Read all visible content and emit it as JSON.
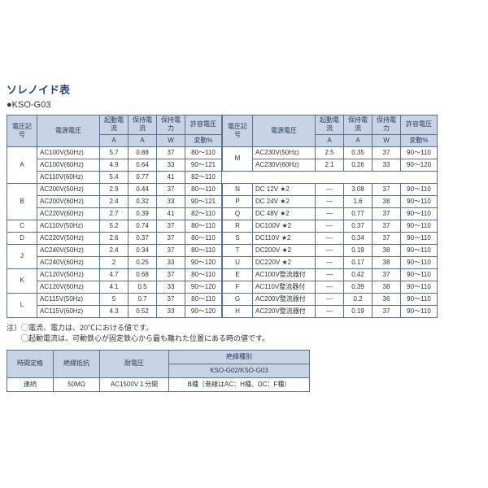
{
  "title": "ソレノイド表",
  "subtitle": "●KSO-G03",
  "headers": {
    "code": "電圧記号",
    "volt": "電源電圧",
    "start_i": "起動電流",
    "hold_i": "保持電流",
    "hold_w": "保持電力",
    "tol": "許容電圧",
    "unit_a": "A",
    "unit_w": "W",
    "unit_pct": "変動%"
  },
  "left_rows": [
    {
      "code": "A",
      "span": 4,
      "volt": "AC100V(50Hz)",
      "si": "5.7",
      "hi": "0.88",
      "hw": "37",
      "tol": "80～110"
    },
    {
      "volt": "AC100V(60Hz)",
      "si": "4.9",
      "hi": "0.64",
      "hw": "33",
      "tol": "90～121"
    },
    {
      "volt": "AC110V(60Hz)",
      "si": "5.4",
      "hi": "0.77",
      "hw": "41",
      "tol": "82～110"
    },
    {
      "volt": "AC200V(50Hz)",
      "si": "2.9",
      "hi": "0.44",
      "hw": "37",
      "tol": "80～110"
    },
    {
      "code": "B",
      "span": 3,
      "volt": "AC200V(60Hz)",
      "si": "2.4",
      "hi": "0.32",
      "hw": "33",
      "tol": "90～121"
    },
    {
      "volt": "AC220V(60Hz)",
      "si": "2.7",
      "hi": "0.39",
      "hw": "41",
      "tol": "82～110"
    },
    {
      "code": "C",
      "span": 1,
      "volt": "AC110V(50Hz)",
      "si": "5.2",
      "hi": "0.74",
      "hw": "37",
      "tol": "80～110"
    },
    {
      "code": "D",
      "span": 1,
      "volt": "AC220V(50Hz)",
      "si": "2.6",
      "hi": "0.37",
      "hw": "37",
      "tol": "80～110"
    },
    {
      "code": "J",
      "span": 2,
      "volt": "AC240V(50Hz)",
      "si": "2.4",
      "hi": "0.34",
      "hw": "37",
      "tol": "80～110"
    },
    {
      "volt": "AC240V(60Hz)",
      "si": "2",
      "hi": "0.25",
      "hw": "33",
      "tol": "90～120"
    },
    {
      "code": "K",
      "span": 2,
      "volt": "AC120V(50Hz)",
      "si": "4.7",
      "hi": "0.68",
      "hw": "37",
      "tol": "80～110"
    },
    {
      "volt": "AC120V(60Hz)",
      "si": "4.1",
      "hi": "0.5",
      "hw": "33",
      "tol": "90～120"
    },
    {
      "code": "L",
      "span": 2,
      "volt": "AC115V(50Hz)",
      "si": "5",
      "hi": "0.7",
      "hw": "37",
      "tol": "80～110"
    },
    {
      "volt": "AC115V(60Hz)",
      "si": "4.3",
      "hi": "0.52",
      "hw": "33",
      "tol": "90～120"
    }
  ],
  "right_rows": [
    {
      "code": "M",
      "span": 2,
      "volt": "AC230V(50Hz)",
      "si": "2.5",
      "hi": "0.35",
      "hw": "37",
      "tol": "90～110"
    },
    {
      "volt": "AC230V(60Hz)",
      "si": "2.1",
      "hi": "0.26",
      "hw": "33",
      "tol": "90～120"
    },
    {
      "blank": true
    },
    {
      "code": "N",
      "span": 1,
      "volt": "DC 12V ★2",
      "si": "—",
      "hi": "3.08",
      "hw": "37",
      "tol": "90～110"
    },
    {
      "code": "P",
      "span": 1,
      "volt": "DC 24V ★2",
      "si": "—",
      "hi": "1.6",
      "hw": "38",
      "tol": "90～110"
    },
    {
      "code": "Q",
      "span": 1,
      "volt": "DC 48V ★2",
      "si": "—",
      "hi": "0.77",
      "hw": "37",
      "tol": "90～110"
    },
    {
      "code": "R",
      "span": 1,
      "volt": "DC100V ★2",
      "si": "—",
      "hi": "0.37",
      "hw": "37",
      "tol": "90～110"
    },
    {
      "code": "S",
      "span": 1,
      "volt": "DC110V ★2",
      "si": "—",
      "hi": "0.34",
      "hw": "37",
      "tol": "90～110"
    },
    {
      "code": "T",
      "span": 1,
      "volt": "DC200V ★2",
      "si": "—",
      "hi": "0.19",
      "hw": "38",
      "tol": "90～110"
    },
    {
      "code": "U",
      "span": 1,
      "volt": "DC220V ★2",
      "si": "—",
      "hi": "0.17",
      "hw": "38",
      "tol": "90～110"
    },
    {
      "code": "E",
      "span": 1,
      "volt": "AC100V整流器付",
      "si": "—",
      "hi": "0.42",
      "hw": "37",
      "tol": "90～110"
    },
    {
      "code": "F",
      "span": 1,
      "volt": "AC110V整流器付",
      "si": "—",
      "hi": "0.39",
      "hw": "38",
      "tol": "90～110"
    },
    {
      "code": "G",
      "span": 1,
      "volt": "AC200V整流器付",
      "si": "—",
      "hi": "0.2",
      "hw": "36",
      "tol": "90～110"
    },
    {
      "code": "H",
      "span": 1,
      "volt": "AC220V整流器付",
      "si": "—",
      "hi": "0.19",
      "hw": "37",
      "tol": "90～110"
    }
  ],
  "notes": {
    "l1": "注）◯電流、電力は、20℃における値です。",
    "l2": "　　◯起動電流は、可動鉄心が固定鉄心から最も離れた位置にある時の値です。"
  },
  "small": {
    "h1": "時間定格",
    "h2": "絶縁抵抗",
    "h3": "耐電圧",
    "h4": "絶縁種別",
    "h4b": "KSO-G02/KSO-G03",
    "r1": "連続",
    "r2": "50MΩ",
    "r3": "AC1500V１分間",
    "r4": "B種（巻線はAC：H種、DC：F種）"
  }
}
